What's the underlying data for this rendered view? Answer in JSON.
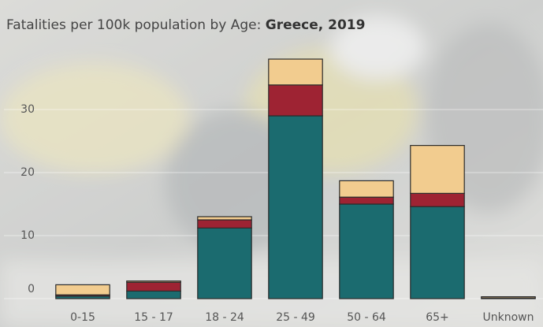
{
  "chart_data": {
    "type": "bar",
    "stacked": true,
    "title": "Fatalities per 100k population by Age:",
    "subtitle": "Greece, 2019",
    "categories": [
      "0-15",
      "15 - 17",
      "18 - 24",
      "25 - 49",
      "50 - 64",
      "65+",
      "Unknown"
    ],
    "series": [
      {
        "color": "#1b6b6f",
        "values": [
          0.4,
          1.2,
          11.2,
          29,
          15,
          14.6,
          0.1
        ]
      },
      {
        "color": "#9e2333",
        "values": [
          0.2,
          1.4,
          1.3,
          4.9,
          1.1,
          2.1,
          0
        ]
      },
      {
        "color": "#f2cc8f",
        "values": [
          1.6,
          0.2,
          0.5,
          4.1,
          2.6,
          7.6,
          0.2
        ]
      }
    ],
    "ylim": [
      0,
      41
    ],
    "yticks": [
      0,
      10,
      20,
      30
    ],
    "grid": true
  }
}
